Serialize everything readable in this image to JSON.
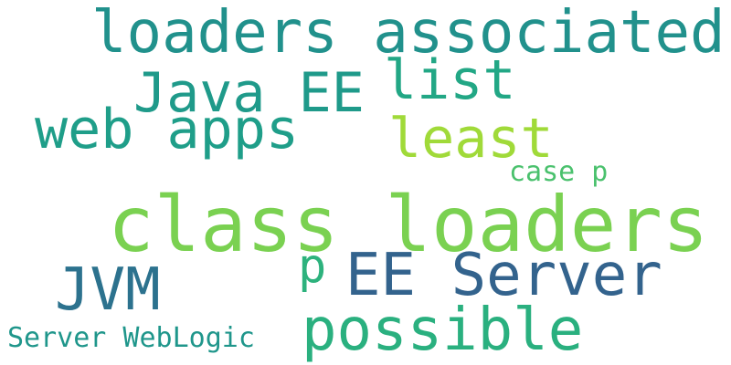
{
  "words": [
    {
      "id": "class-loaders",
      "text": "class loaders",
      "color": "#7ad151"
    },
    {
      "id": "loaders-associated",
      "text": "loaders associated",
      "color": "#21918c"
    },
    {
      "id": "java-ee",
      "text": "Java EE",
      "color": "#1f9a8a"
    },
    {
      "id": "list",
      "text": "list",
      "color": "#22a785"
    },
    {
      "id": "web-apps",
      "text": "web apps",
      "color": "#1f9e89"
    },
    {
      "id": "least",
      "text": "least",
      "color": "#a0da39"
    },
    {
      "id": "case-p",
      "text": "case p",
      "color": "#4ac16d"
    },
    {
      "id": "jvm",
      "text": "JVM",
      "color": "#2c728e"
    },
    {
      "id": "p",
      "text": "p",
      "color": "#2db27d"
    },
    {
      "id": "ee-server",
      "text": "EE Server",
      "color": "#33638d"
    },
    {
      "id": "possible",
      "text": "possible",
      "color": "#2ab07f"
    },
    {
      "id": "server-weblogic",
      "text": "Server WebLogic",
      "color": "#1f968b"
    }
  ]
}
